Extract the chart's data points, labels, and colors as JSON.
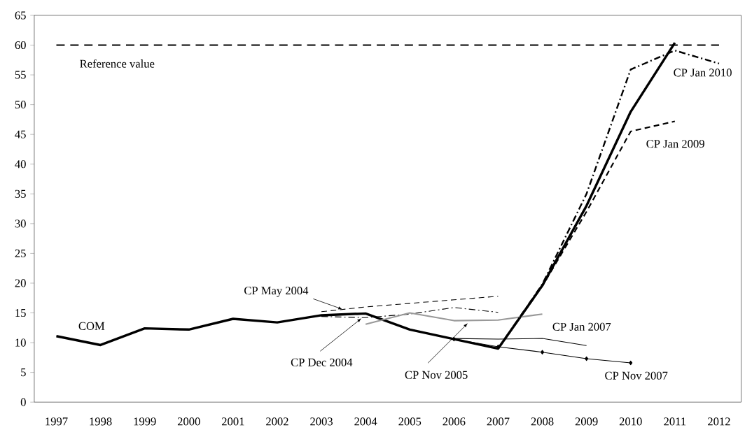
{
  "chart_data": {
    "type": "line",
    "categories": [
      "1997",
      "1998",
      "1999",
      "2000",
      "2001",
      "2002",
      "2003",
      "2004",
      "2005",
      "2006",
      "2007",
      "2008",
      "2009",
      "2010",
      "2011",
      "2012"
    ],
    "ylim": [
      0,
      65
    ],
    "yticks": [
      0,
      5,
      10,
      15,
      20,
      25,
      30,
      35,
      40,
      45,
      50,
      55,
      60,
      65
    ],
    "grid": false,
    "series": [
      {
        "name": "COM",
        "color": "#000000",
        "line_style": "solid",
        "values": [
          11.1,
          9.6,
          12.4,
          12.2,
          14.0,
          13.4,
          14.6,
          14.9,
          12.2,
          10.6,
          9.0,
          19.6,
          33,
          48.8,
          60.4,
          null
        ]
      },
      {
        "name": "CP May 2004",
        "color": "#000000",
        "line_style": "dashed",
        "values": [
          null,
          null,
          null,
          null,
          null,
          null,
          15.2,
          16.0,
          16.6,
          17.2,
          17.8,
          null,
          null,
          null,
          null,
          null
        ]
      },
      {
        "name": "CP Dec 2004",
        "color": "#000000",
        "line_style": "dashdot",
        "values": [
          null,
          null,
          null,
          null,
          null,
          null,
          14.4,
          14.2,
          14.8,
          15.9,
          15.1,
          null,
          null,
          null,
          null,
          null
        ]
      },
      {
        "name": "CP Nov 2005",
        "color": "#999999",
        "line_style": "solid",
        "values": [
          null,
          null,
          null,
          null,
          null,
          null,
          null,
          13.1,
          15.0,
          13.7,
          13.8,
          14.8,
          null,
          null,
          null,
          null
        ]
      },
      {
        "name": "CP Jan 2007",
        "color": "#000000",
        "line_style": "solid",
        "values": [
          null,
          null,
          null,
          null,
          null,
          null,
          null,
          null,
          null,
          10.7,
          10.6,
          10.7,
          9.5,
          null,
          null,
          null
        ]
      },
      {
        "name": "CP Nov 2007",
        "color": "#000000",
        "line_style": "solid",
        "marker": "diamond",
        "values": [
          null,
          null,
          null,
          null,
          null,
          null,
          null,
          null,
          null,
          10.6,
          9.3,
          8.4,
          7.3,
          6.6,
          null,
          null
        ]
      },
      {
        "name": "CP Jan 2009",
        "color": "#000000",
        "line_style": "dashed",
        "values": [
          null,
          null,
          null,
          null,
          null,
          null,
          null,
          null,
          null,
          null,
          9.0,
          19.5,
          32,
          45.5,
          47.2,
          null
        ]
      },
      {
        "name": "CP Jan 2010",
        "color": "#000000",
        "line_style": "dashdot",
        "values": [
          null,
          null,
          null,
          null,
          null,
          null,
          null,
          null,
          null,
          null,
          9.0,
          19.8,
          35,
          55.9,
          59.1,
          56.9
        ]
      }
    ],
    "ref_lines": [
      {
        "axis": "y",
        "value": 60,
        "label": "Reference value",
        "color": "#000000",
        "line_style": "dashed"
      }
    ]
  }
}
